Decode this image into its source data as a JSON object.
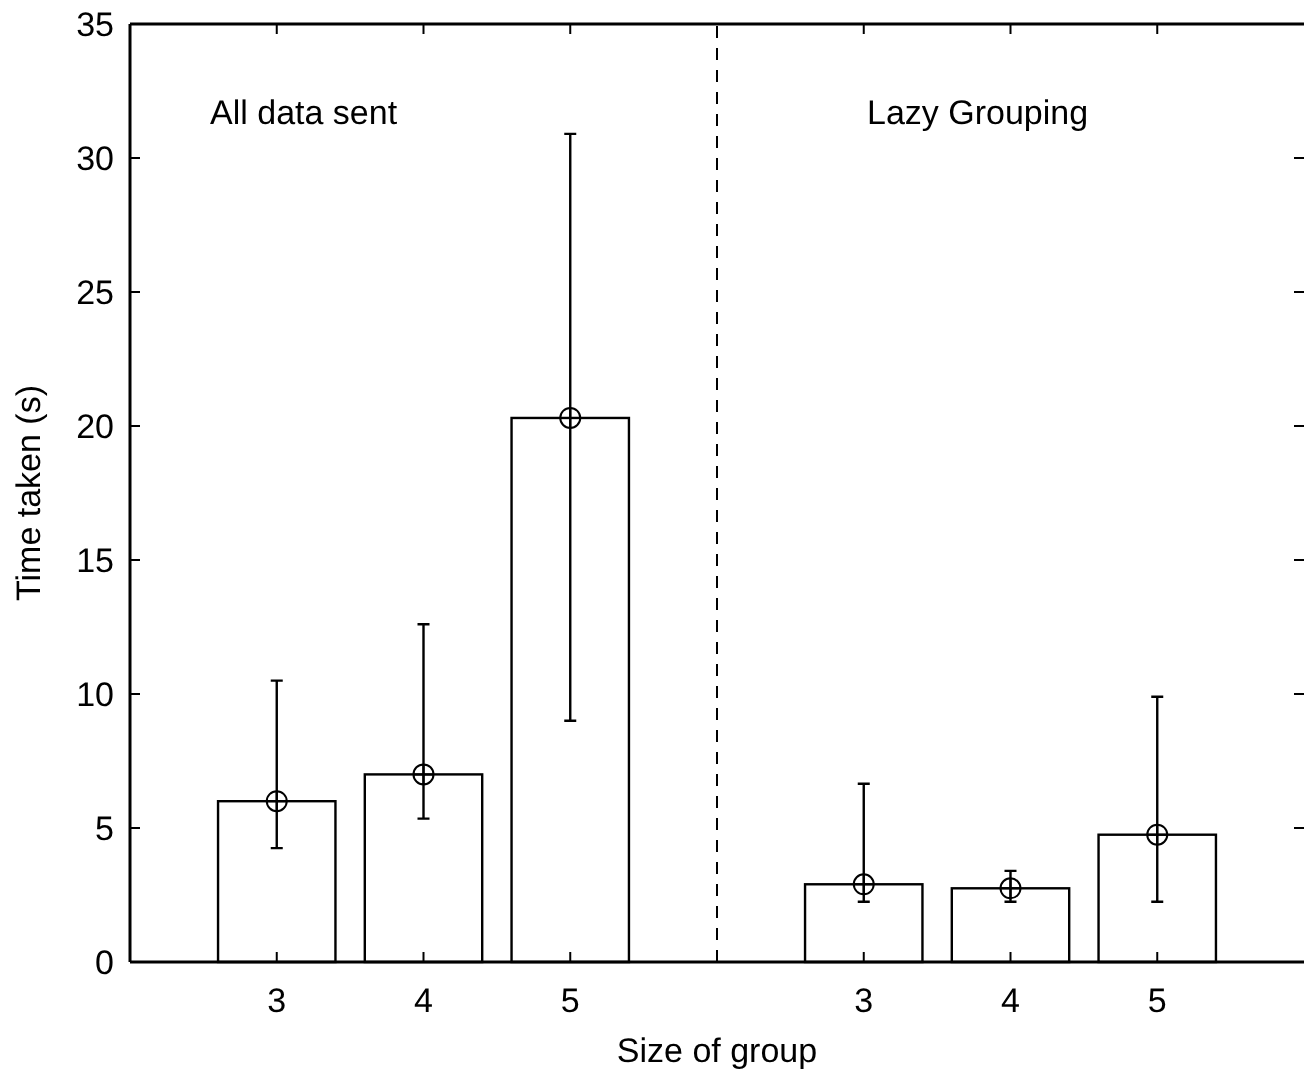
{
  "chart_data": {
    "type": "bar",
    "xlabel": "Size of group",
    "ylabel": "Time taken (s)",
    "annotations": [
      "All data sent",
      "Lazy Grouping"
    ],
    "categories": [
      "3",
      "4",
      "5",
      null,
      "3",
      "4",
      "5"
    ],
    "series": [
      {
        "color": "#ffffff",
        "values": [
          6,
          7,
          20.3,
          0,
          2.9,
          2.75,
          4.75
        ]
      },
      {
        "type": "scatter",
        "color": "#000000",
        "marker": "cross",
        "values": [
          6,
          7,
          20.3,
          null,
          2.9,
          2.75,
          4.75
        ],
        "errors": [
          [
            4.25,
            10.5
          ],
          [
            5.35,
            12.6
          ],
          [
            9,
            30.9
          ],
          null,
          [
            2.25,
            6.65
          ],
          [
            2.25,
            3.4
          ],
          [
            2.25,
            9.9
          ]
        ]
      }
    ],
    "ylim": [
      0,
      35
    ],
    "yticks": [
      0,
      5,
      10,
      15,
      20,
      25,
      30,
      35
    ],
    "ref_lines": [
      {
        "axis": "x",
        "value": null,
        "line_style": "dashed"
      }
    ]
  }
}
